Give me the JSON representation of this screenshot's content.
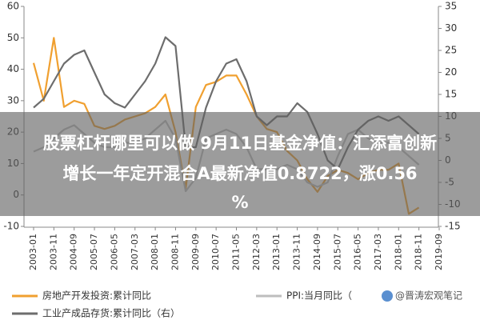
{
  "chart_data": {
    "type": "line",
    "x": [
      "2003-01",
      "2003-06",
      "2003-11",
      "2004-04",
      "2004-09",
      "2005-02",
      "2005-07",
      "2005-12",
      "2006-05",
      "2006-10",
      "2007-03",
      "2007-08",
      "2008-01",
      "2008-06",
      "2008-11",
      "2009-04",
      "2009-09",
      "2010-02",
      "2010-07",
      "2010-12",
      "2011-05",
      "2011-10",
      "2012-03",
      "2012-08",
      "2013-01",
      "2013-06",
      "2013-11",
      "2014-04",
      "2014-09",
      "2015-02",
      "2015-07",
      "2015-12",
      "2016-05",
      "2016-10",
      "2017-03",
      "2017-08",
      "2018-01",
      "2018-06",
      "2018-11",
      "2019-04",
      "2019-09"
    ],
    "xlim": [
      "2003-01",
      "2019-09"
    ],
    "xticks": [
      "2003-01",
      "2003-11",
      "2004-09",
      "2005-07",
      "2006-05",
      "2007-03",
      "2008-01",
      "2008-11",
      "2009-09",
      "2010-07",
      "2011-05",
      "2012-03",
      "2013-01",
      "2013-11",
      "2014-09",
      "2015-07",
      "2016-05",
      "2017-03",
      "2018-01",
      "2018-11",
      "2019-09"
    ],
    "ylim": [
      -10,
      60
    ],
    "yticks": [
      -10,
      0,
      10,
      20,
      30,
      40,
      50,
      60
    ],
    "y2lim": [
      -15,
      35
    ],
    "y2ticks": [
      -15,
      -10,
      -5,
      0,
      5,
      10,
      15,
      20,
      25,
      30,
      35
    ],
    "series": [
      {
        "name": "房地产开发投资:累计同比",
        "color": "#f0a030",
        "values": [
          42,
          30,
          50,
          28,
          30,
          29,
          22,
          21,
          22,
          24,
          25,
          26,
          28,
          32,
          20,
          2,
          28,
          35,
          36,
          38,
          38,
          32,
          25,
          21,
          20,
          14,
          11,
          5,
          1,
          6,
          8,
          7,
          5,
          7,
          8,
          8,
          10,
          -6,
          -4,
          null,
          null
        ]
      },
      {
        "name": "PPI:当月同比（",
        "color": "#bdbdbd",
        "axis": "y2",
        "values": [
          2,
          3,
          5,
          7,
          8,
          6,
          4,
          3,
          3,
          4,
          4,
          5,
          7,
          9,
          5,
          -7,
          -4,
          5,
          6,
          7,
          6,
          3,
          -2,
          -2,
          -2,
          -1,
          -2,
          -5,
          -6,
          -5,
          1,
          6,
          7,
          5,
          4,
          4,
          3,
          1,
          -1,
          null,
          null
        ]
      },
      {
        "name": "工业产成品存货:累计同比（右）",
        "color": "#6d6d6d",
        "axis": "y2",
        "values": [
          12,
          14,
          18,
          22,
          24,
          25,
          20,
          15,
          13,
          12,
          15,
          18,
          22,
          28,
          26,
          3,
          3,
          12,
          18,
          22,
          23,
          18,
          10,
          8,
          10,
          10,
          13,
          11,
          6,
          0,
          -2,
          3,
          7,
          9,
          10,
          9,
          10,
          8,
          6,
          null,
          null
        ]
      }
    ]
  },
  "watermark": "@晋涛宏观笔记",
  "banner": {
    "lines": [
      "股票杠杆哪里可以做 9月11日基金净值：汇添富创新",
      "增长一年定开混合A最新净值0.8722，涨0.56",
      "%"
    ]
  }
}
